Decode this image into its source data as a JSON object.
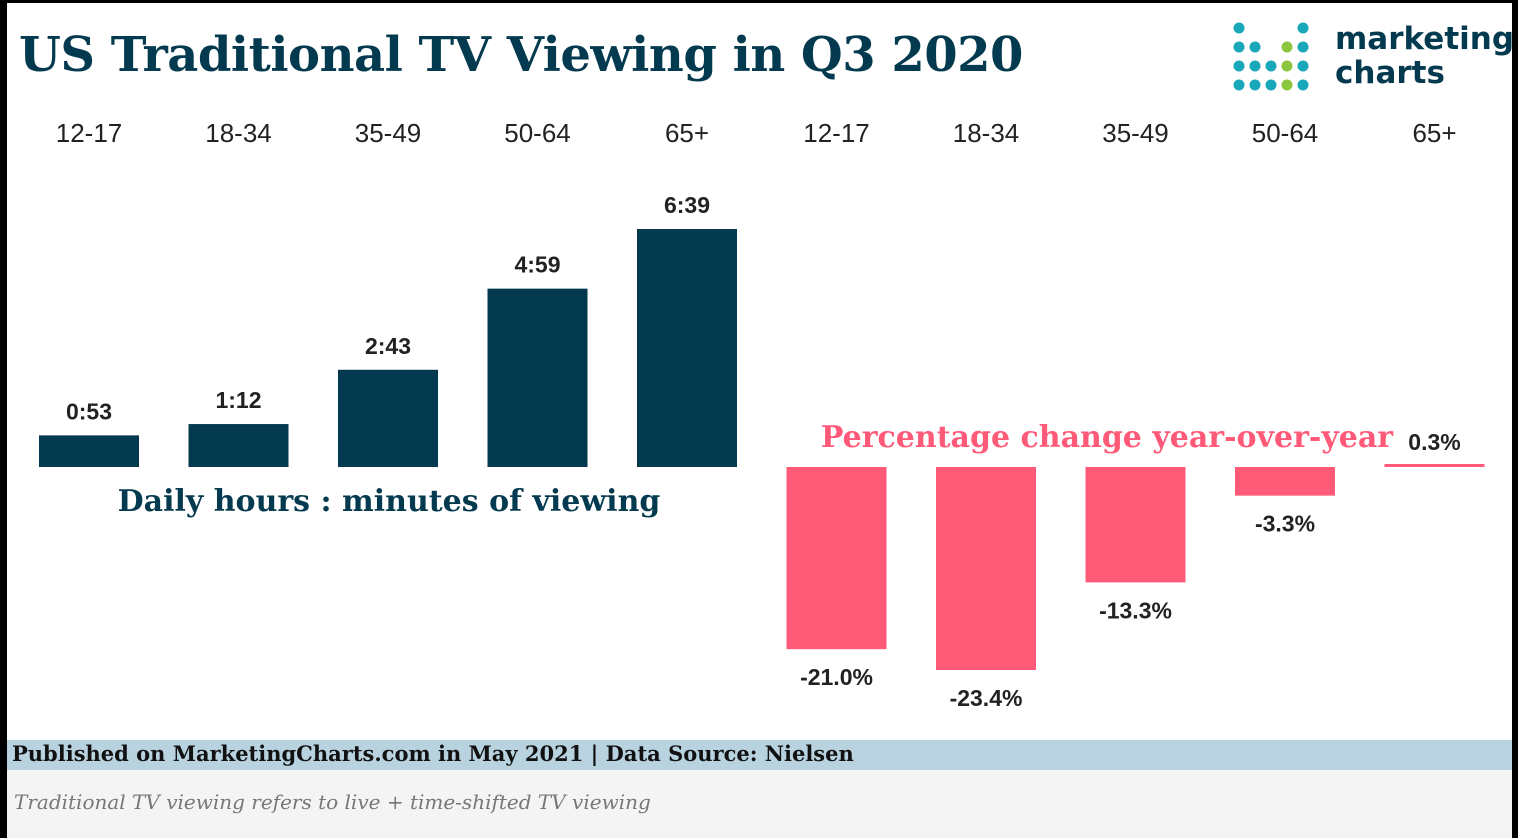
{
  "title": "US Traditional TV Viewing in Q3 2020",
  "logo": {
    "line1": "marketing",
    "line2": "charts"
  },
  "colors": {
    "navy": "#043a4f",
    "pink": "#ff5a78",
    "teal": "#19a8ba",
    "green": "#8cc63f"
  },
  "chart_data": [
    {
      "type": "bar",
      "categories": [
        "12-17",
        "18-34",
        "35-49",
        "50-64",
        "65+"
      ],
      "values": [
        0.8833,
        1.2,
        2.7167,
        4.9833,
        6.65
      ],
      "value_labels": [
        "0:53",
        "1:12",
        "2:43",
        "4:59",
        "6:39"
      ],
      "annotation": "Daily hours : minutes of viewing",
      "ylim": [
        0,
        6.65
      ],
      "color": "#043a4f",
      "grid": false
    },
    {
      "type": "bar",
      "categories": [
        "12-17",
        "18-34",
        "35-49",
        "50-64",
        "65+"
      ],
      "values": [
        -21.0,
        -23.4,
        -13.3,
        -3.3,
        0.3
      ],
      "value_labels": [
        "-21.0%",
        "-23.4%",
        "-13.3%",
        "-3.3%",
        "0.3%"
      ],
      "annotation": "Percentage change year-over-year",
      "ylim": [
        -23.4,
        0.3
      ],
      "color": "#ff5a78",
      "grid": false
    }
  ],
  "footer": {
    "source": "Published on MarketingCharts.com in May 2021 | Data Source: Nielsen",
    "note": "Traditional TV viewing refers to live + time-shifted TV viewing"
  }
}
